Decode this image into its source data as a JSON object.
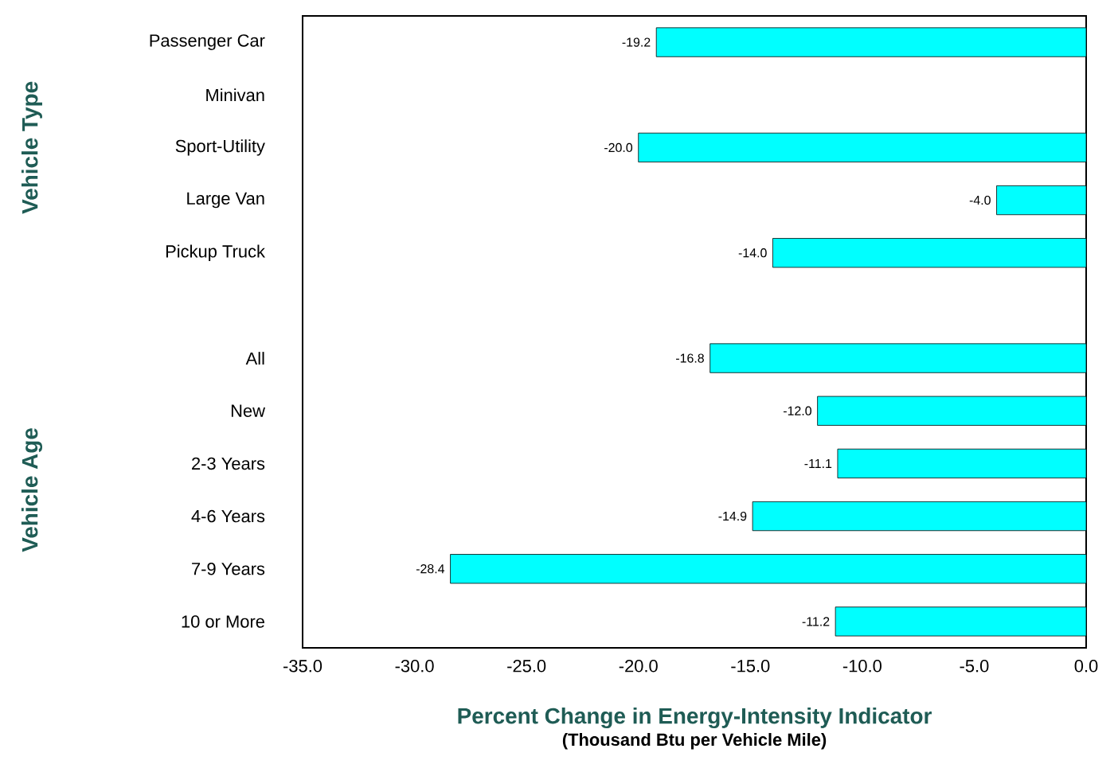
{
  "chart_data": {
    "type": "bar",
    "orientation": "horizontal",
    "xlabel": "Percent Change in Energy-Intensity Indicator",
    "annotations": [
      "(Thousand Btu per Vehicle Mile)",
      "Vehicle Type",
      "Vehicle Age"
    ],
    "categories": [
      "Passenger Car",
      "Minivan",
      "Sport-Utility",
      "Large Van",
      "Pickup Truck",
      null,
      "All",
      "New",
      "2-3 Years",
      "4-6 Years",
      "7-9 Years",
      "10 or More"
    ],
    "values": [
      -19.2,
      null,
      -20.0,
      -4.0,
      -14.0,
      null,
      -16.8,
      -12.0,
      -11.1,
      -14.9,
      -28.4,
      -11.2
    ],
    "value_labels": [
      "-19.2",
      null,
      "-20.0",
      "-4.0",
      "-14.0",
      null,
      "-16.8",
      "-12.0",
      "-11.1",
      "-14.9",
      "-28.4",
      "-11.2"
    ],
    "color": "#00ffff",
    "xlim": [
      -35,
      0
    ],
    "xticks": [
      {
        "value": -35,
        "label": "-35.0"
      },
      {
        "value": -30,
        "label": "-30.0"
      },
      {
        "value": -25,
        "label": "-25.0"
      },
      {
        "value": -20,
        "label": "-20.0"
      },
      {
        "value": -15,
        "label": "-15.0"
      },
      {
        "value": -10,
        "label": "-10.0"
      },
      {
        "value": -5,
        "label": "-5.0"
      },
      {
        "value": 0,
        "label": "0.0"
      }
    ],
    "grid": false
  }
}
